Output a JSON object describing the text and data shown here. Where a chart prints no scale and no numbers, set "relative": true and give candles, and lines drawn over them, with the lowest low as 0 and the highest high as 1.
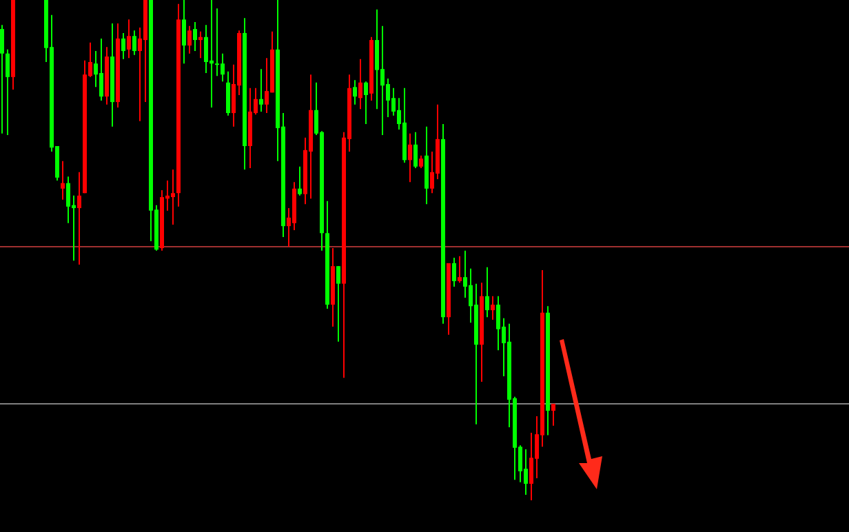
{
  "chart_data": {
    "type": "candlestick",
    "relative": true,
    "categories": [
      null,
      null,
      null,
      null,
      null,
      null,
      null,
      null,
      null,
      null,
      null,
      null,
      null,
      null,
      null,
      null,
      null,
      null,
      null,
      null,
      null,
      null,
      null,
      null,
      null,
      null,
      null,
      null,
      null,
      null,
      null,
      null,
      null,
      null,
      null,
      null,
      null,
      null,
      null,
      null,
      null,
      null,
      null,
      null,
      null,
      null,
      null,
      null,
      null,
      null,
      null,
      null,
      null,
      null,
      null,
      null,
      null,
      null,
      null,
      null,
      null,
      null,
      null,
      null,
      null,
      null,
      null,
      null,
      null,
      null,
      null,
      null,
      null,
      null,
      null,
      null,
      null,
      null,
      null,
      null,
      null,
      null,
      null,
      null,
      null,
      null,
      null,
      null,
      null,
      null,
      null,
      null,
      null,
      null,
      null,
      null,
      null,
      null,
      null,
      null,
      null
    ],
    "ohlc": [
      [
        0.942,
        0.95,
        0.733,
        0.893
      ],
      [
        0.893,
        0.901,
        0.73,
        0.846
      ],
      [
        0.846,
        1,
        0.821,
        1
      ],
      null,
      null,
      null,
      null,
      null,
      [
        1,
        1,
        0.876,
        0.904
      ],
      [
        0.906,
        0.97,
        0.697,
        0.705
      ],
      [
        0.708,
        0.708,
        0.639,
        0.645
      ],
      [
        0.623,
        0.678,
        0.601,
        0.634
      ],
      [
        0.634,
        0.647,
        0.554,
        0.587
      ],
      [
        0.59,
        0.609,
        0.479,
        0.584
      ],
      [
        0.584,
        0.656,
        0.471,
        0.609
      ],
      [
        0.614,
        0.879,
        0.614,
        0.851
      ],
      [
        0.848,
        0.915,
        0.846,
        0.876
      ],
      [
        0.873,
        0.898,
        0.826,
        0.851
      ],
      [
        0.854,
        0.923,
        0.799,
        0.807
      ],
      [
        0.807,
        0.906,
        0.791,
        0.887
      ],
      [
        0.887,
        0.953,
        0.747,
        0.796
      ],
      [
        0.796,
        0.953,
        0.785,
        0.923
      ],
      [
        0.923,
        0.934,
        0.882,
        0.898
      ],
      [
        0.901,
        0.961,
        0.884,
        0.928
      ],
      [
        0.928,
        0.939,
        0.89,
        0.898
      ],
      [
        0.898,
        0.945,
        0.758,
        0.923
      ],
      [
        0.92,
        1,
        0.796,
        1
      ],
      [
        1,
        1,
        0.518,
        0.579
      ],
      [
        0.581,
        0.59,
        0.499,
        0.501
      ],
      [
        0.504,
        0.62,
        0.499,
        0.606
      ],
      [
        0.603,
        0.639,
        0.579,
        0.609
      ],
      [
        0.606,
        0.661,
        0.551,
        0.614
      ],
      [
        0.614,
        0.992,
        0.587,
        0.961
      ],
      [
        0.961,
        1,
        0.873,
        0.909
      ],
      [
        0.909,
        0.948,
        0.893,
        0.939
      ],
      [
        0.942,
        0.956,
        0.898,
        0.92
      ],
      [
        0.92,
        0.937,
        0.884,
        0.926
      ],
      [
        0.926,
        0.95,
        0.854,
        0.876
      ],
      [
        0.879,
        1,
        0.785,
        0.873
      ],
      [
        0.873,
        0.983,
        0.848,
        0.871
      ],
      [
        0.873,
        0.893,
        0.837,
        0.851
      ],
      [
        0.835,
        0.857,
        0.769,
        0.774
      ],
      [
        0.774,
        0.871,
        0.747,
        0.832
      ],
      [
        0.829,
        0.939,
        0.81,
        0.934
      ],
      [
        0.934,
        0.964,
        0.661,
        0.708
      ],
      [
        0.708,
        0.824,
        0.664,
        0.777
      ],
      [
        0.774,
        0.824,
        0.771,
        0.802
      ],
      [
        0.802,
        0.862,
        0.777,
        0.791
      ],
      [
        0.791,
        0.884,
        0.774,
        0.818
      ],
      [
        0.815,
        0.937,
        0.815,
        0.901
      ],
      [
        0.901,
        1,
        0.678,
        0.744
      ],
      [
        0.747,
        0.774,
        0.526,
        0.548
      ],
      [
        0.548,
        0.584,
        0.507,
        0.565
      ],
      [
        0.554,
        0.636,
        0.54,
        0.623
      ],
      [
        0.623,
        0.667,
        0.609,
        0.612
      ],
      [
        0.612,
        0.725,
        0.592,
        0.7
      ],
      [
        0.697,
        0.851,
        0.603,
        0.78
      ],
      [
        0.78,
        0.835,
        0.73,
        0.733
      ],
      [
        0.736,
        0.738,
        0.499,
        0.534
      ],
      [
        0.534,
        0.598,
        0.383,
        0.391
      ],
      [
        0.391,
        0.504,
        0.347,
        0.468
      ],
      [
        0.468,
        0.468,
        0.317,
        0.433
      ],
      [
        0.433,
        0.736,
        0.245,
        0.725
      ],
      [
        0.722,
        0.851,
        0.697,
        0.824
      ],
      [
        0.826,
        0.84,
        0.791,
        0.807
      ],
      [
        0.804,
        0.882,
        0.782,
        0.835
      ],
      [
        0.835,
        0.837,
        0.752,
        0.81
      ],
      [
        0.813,
        0.926,
        0.799,
        0.92
      ],
      [
        0.92,
        0.981,
        0.782,
        0.86
      ],
      [
        0.862,
        0.948,
        0.73,
        0.829
      ],
      [
        0.832,
        0.843,
        0.766,
        0.799
      ],
      [
        0.804,
        0.824,
        0.769,
        0.777
      ],
      [
        0.78,
        0.804,
        0.741,
        0.752
      ],
      [
        0.755,
        0.824,
        0.675,
        0.68
      ],
      [
        0.68,
        0.733,
        0.636,
        0.711
      ],
      [
        0.711,
        0.736,
        0.664,
        0.667
      ],
      [
        0.667,
        0.689,
        0.664,
        0.683
      ],
      [
        0.689,
        0.747,
        0.592,
        0.623
      ],
      [
        0.623,
        0.697,
        0.614,
        0.656
      ],
      [
        0.653,
        0.791,
        0.642,
        0.722
      ],
      [
        0.722,
        0.752,
        0.353,
        0.366
      ],
      [
        0.366,
        0.474,
        0.331,
        0.474
      ],
      [
        0.474,
        0.485,
        0.427,
        0.438
      ],
      [
        0.438,
        0.488,
        0.435,
        0.446
      ],
      [
        0.446,
        0.499,
        0.405,
        0.427
      ],
      [
        0.43,
        0.463,
        0.355,
        0.388
      ],
      [
        0.391,
        0.433,
        0.152,
        0.311
      ],
      [
        0.311,
        0.435,
        0.237,
        0.408
      ],
      [
        0.408,
        0.466,
        0.366,
        0.38
      ],
      [
        0.38,
        0.408,
        0.361,
        0.391
      ],
      [
        0.391,
        0.408,
        0.3,
        0.342
      ],
      [
        0.347,
        0.364,
        0.248,
        0.314
      ],
      [
        0.317,
        0.353,
        0.146,
        0.201
      ],
      [
        0.204,
        0.207,
        0.041,
        0.105
      ],
      [
        0.107,
        0.11,
        0.036,
        0.058
      ],
      [
        0.063,
        0.102,
        0.011,
        0.033
      ],
      [
        0.033,
        0.135,
        0,
        0.085
      ],
      [
        0.083,
        0.168,
        0.044,
        0.132
      ],
      [
        0.13,
        0.46,
        0.107,
        0.375
      ],
      [
        0.375,
        0.388,
        0.13,
        0.179
      ],
      [
        0.179,
        0.193,
        0.149,
        0.193
      ]
    ],
    "colors": [
      "#00ff00",
      "#00ff00",
      "#ff0000",
      null,
      null,
      null,
      null,
      null,
      "#00ff00",
      "#00ff00",
      "#00ff00",
      "#ff0000",
      "#00ff00",
      "#00ff00",
      "#ff0000",
      "#ff0000",
      "#ff0000",
      "#00ff00",
      "#00ff00",
      "#ff0000",
      "#00ff00",
      "#ff0000",
      "#00ff00",
      "#ff0000",
      "#00ff00",
      "#ff0000",
      "#ff0000",
      "#00ff00",
      "#00ff00",
      "#ff0000",
      "#ff0000",
      "#ff0000",
      "#ff0000",
      "#00ff00",
      "#ff0000",
      "#00ff00",
      "#ff0000",
      "#00ff00",
      "#00ff00",
      "#00ff00",
      "#00ff00",
      "#00ff00",
      "#ff0000",
      "#ff0000",
      "#00ff00",
      "#ff0000",
      "#ff0000",
      "#00ff00",
      "#ff0000",
      "#ff0000",
      "#00ff00",
      "#00ff00",
      "#ff0000",
      "#ff0000",
      "#00ff00",
      "#ff0000",
      "#ff0000",
      "#00ff00",
      "#00ff00",
      "#00ff00",
      "#ff0000",
      "#00ff00",
      "#ff0000",
      "#ff0000",
      "#00ff00",
      "#ff0000",
      "#00ff00",
      "#ff0000",
      "#00ff00",
      "#00ff00",
      "#00ff00",
      "#00ff00",
      "#00ff00",
      "#00ff00",
      "#ff0000",
      "#00ff00",
      "#ff0000",
      "#00ff00",
      "#ff0000",
      "#ff0000",
      "#00ff00",
      "#ff0000",
      "#00ff00",
      "#ff0000",
      "#00ff00",
      "#00ff00",
      "#00ff00",
      "#ff0000",
      "#00ff00",
      "#ff0000",
      "#00ff00",
      "#00ff00",
      "#00ff00",
      "#00ff00",
      "#00ff00",
      "#00ff00",
      "#ff0000",
      "#ff0000",
      "#ff0000",
      "#00ff00",
      "#ff0000"
    ],
    "ref_lines": [
      {
        "axis": "y",
        "value": 0.507,
        "color": "#a03030"
      },
      {
        "axis": "y",
        "value": 0.193,
        "color": "#808080"
      }
    ]
  }
}
